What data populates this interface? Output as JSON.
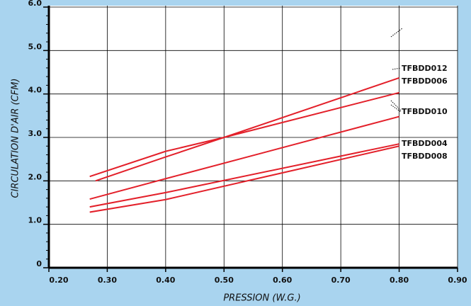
{
  "chart_data": {
    "type": "line",
    "x_label": "PRESSION (W.G.)",
    "y_label": "CIRCULATION D'AIR (CFM)",
    "xlim": [
      0.2,
      0.9
    ],
    "xticks": [
      {
        "value": 0.2,
        "label": "0.20"
      },
      {
        "value": 0.3,
        "label": "0.30"
      },
      {
        "value": 0.4,
        "label": "0.40"
      },
      {
        "value": 0.5,
        "label": "0.50"
      },
      {
        "value": 0.6,
        "label": "0.60"
      },
      {
        "value": 0.7,
        "label": "0.70"
      },
      {
        "value": 0.8,
        "label": "0.80"
      },
      {
        "value": 0.9,
        "label": "0.90"
      }
    ],
    "ylim": [
      0,
      6
    ],
    "yticks": [
      0,
      {
        "value": 1,
        "label": "1.0"
      },
      {
        "value": 2,
        "label": "2.0"
      },
      {
        "value": 3,
        "label": "3.0"
      },
      {
        "value": 4,
        "label": "4.0"
      },
      {
        "value": 5,
        "label": "5.0"
      },
      {
        "value": 6,
        "label": "6.0"
      }
    ],
    "grid": true,
    "series": [
      {
        "name": "TFBDD012",
        "color": "#e3202a",
        "x": [
          0.27,
          0.4,
          0.5,
          0.8
        ],
        "values": [
          2.1,
          2.68,
          3.0,
          4.37
        ]
      },
      {
        "name": "TFBDD006",
        "color": "#e3202a",
        "x": [
          0.28,
          0.4,
          0.5,
          0.8
        ],
        "values": [
          2.0,
          2.55,
          3.0,
          4.03
        ]
      },
      {
        "name": "TFBDD010",
        "color": "#e3202a",
        "x": [
          0.27,
          0.4,
          0.8
        ],
        "values": [
          1.58,
          2.05,
          3.48
        ]
      },
      {
        "name": "TFBDD004",
        "color": "#e3202a",
        "x": [
          0.27,
          0.4,
          0.8
        ],
        "values": [
          1.4,
          1.73,
          2.85
        ]
      },
      {
        "name": "TFBDD008",
        "color": "#e3202a",
        "x": [
          0.27,
          0.4,
          0.8
        ],
        "values": [
          1.28,
          1.57,
          2.8
        ]
      }
    ]
  }
}
